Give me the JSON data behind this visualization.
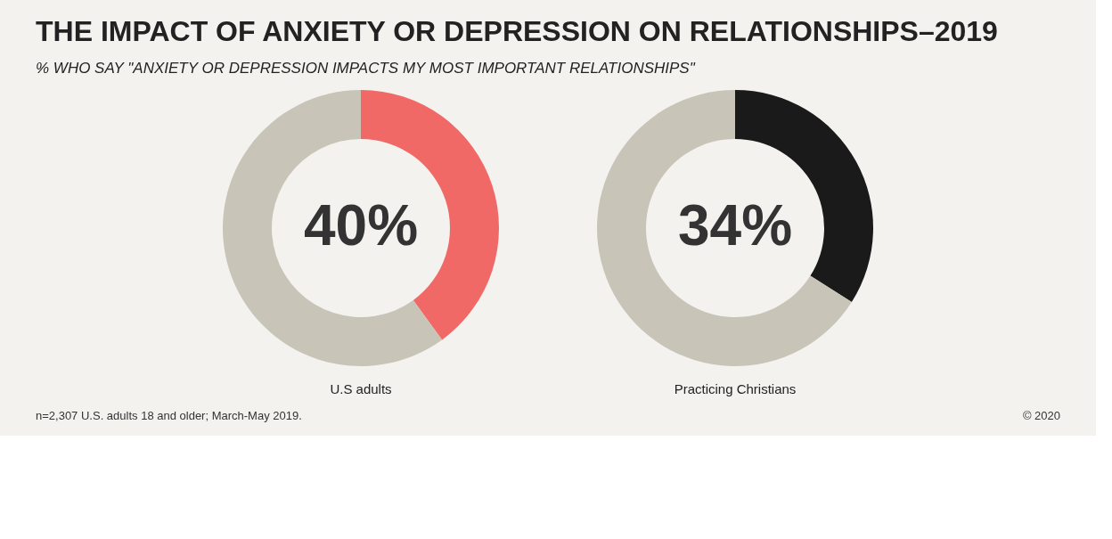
{
  "chart_data": [
    {
      "type": "donut",
      "title": "THE IMPACT OF ANXIETY OR DEPRESSION ON RELATIONSHIPS–2019",
      "subtitle": "% WHO SAY \"ANXIETY OR DEPRESSION IMPACTS MY MOST IMPORTANT RELATIONSHIPS\"",
      "xlabel": "U.S adults",
      "categories": [
        null,
        null
      ],
      "values": [
        40,
        60
      ],
      "colors": [
        "#f06966",
        "#c8c4b8"
      ],
      "value_labels": [
        "40%",
        null
      ],
      "legend": false,
      "annotations": [
        "n=2,307 U.S. adults 18 and older; March-May 2019.",
        "© 2020"
      ]
    },
    {
      "type": "donut",
      "xlabel": "Practicing Christians",
      "categories": [
        null,
        null
      ],
      "values": [
        34,
        66
      ],
      "colors": [
        "#1a1a1a",
        "#c8c4b8"
      ],
      "value_labels": [
        "34%",
        null
      ],
      "legend": false
    }
  ]
}
